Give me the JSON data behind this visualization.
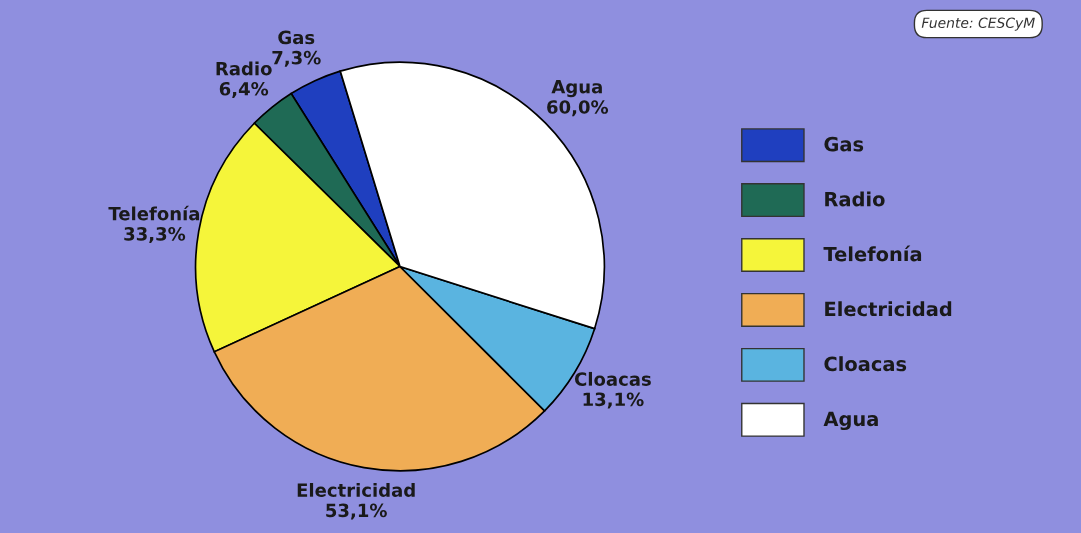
{
  "chart_data": {
    "type": "pie",
    "categories": [
      "Gas",
      "Radio",
      "Telefonía",
      "Electricidad",
      "Cloacas",
      "Agua"
    ],
    "values": [
      7.3,
      6.4,
      33.3,
      53.1,
      13.1,
      60.0
    ],
    "value_labels": [
      "7,3%",
      "6,4%",
      "33,3%",
      "53,1%",
      "13,1%",
      "60,0%"
    ],
    "colors": [
      "#1f3fbf",
      "#1f6a55",
      "#f5f53a",
      "#f0ad55",
      "#5ab4e0",
      "#ffffff"
    ],
    "legend": "right",
    "annotations": [
      "Fuente: CESCyM"
    ]
  }
}
